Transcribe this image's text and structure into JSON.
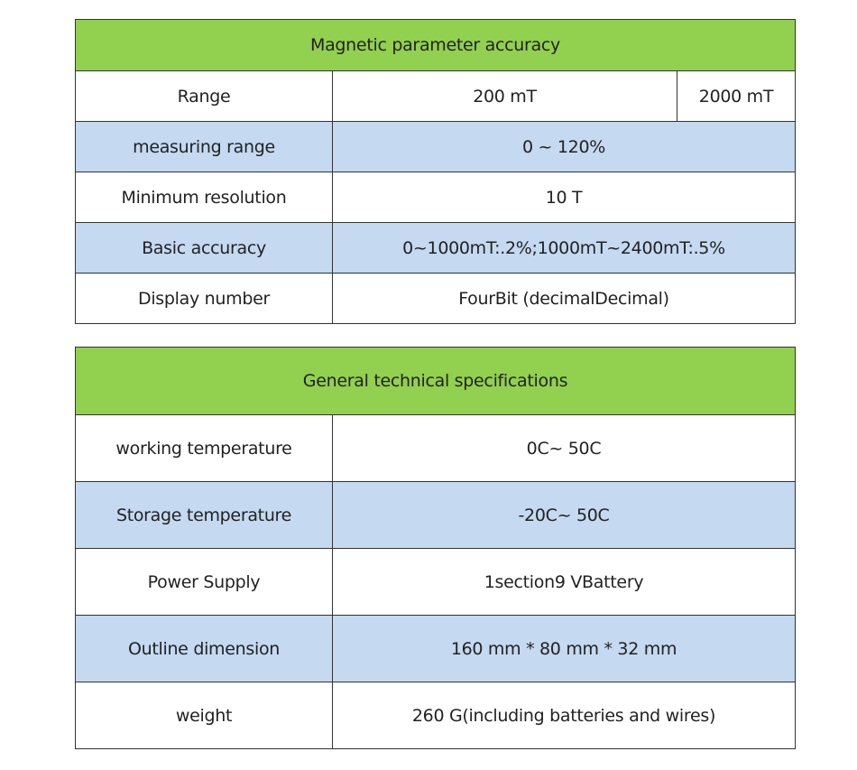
{
  "magnetic": {
    "title": "Magnetic parameter accuracy",
    "range_label": "Range",
    "range_values": [
      "200 mT",
      "2000 mT"
    ],
    "rows": [
      {
        "label": "measuring range",
        "value": "0 ~ 120%"
      },
      {
        "label": "Minimum resolution",
        "value": "10 T"
      },
      {
        "label": "Basic accuracy",
        "value": "0~1000mT:.2%;1000mT~2400mT:.5%"
      },
      {
        "label": "Display number",
        "value": "FourBit (decimalDecimal)"
      }
    ]
  },
  "general": {
    "title": "General technical specifications",
    "rows": [
      {
        "label": "working temperature",
        "value": "0C~ 50C"
      },
      {
        "label": "Storage temperature",
        "value": "-20C~ 50C"
      },
      {
        "label": "Power Supply",
        "value": "1section9 VBattery"
      },
      {
        "label": "Outline dimension",
        "value": "160 mm * 80 mm * 32 mm"
      },
      {
        "label": "weight",
        "value": "260 G(including batteries and wires)"
      }
    ]
  },
  "colors": {
    "header_green": "#92d050",
    "row_blue": "#c5d9f1",
    "border": "#333333"
  }
}
